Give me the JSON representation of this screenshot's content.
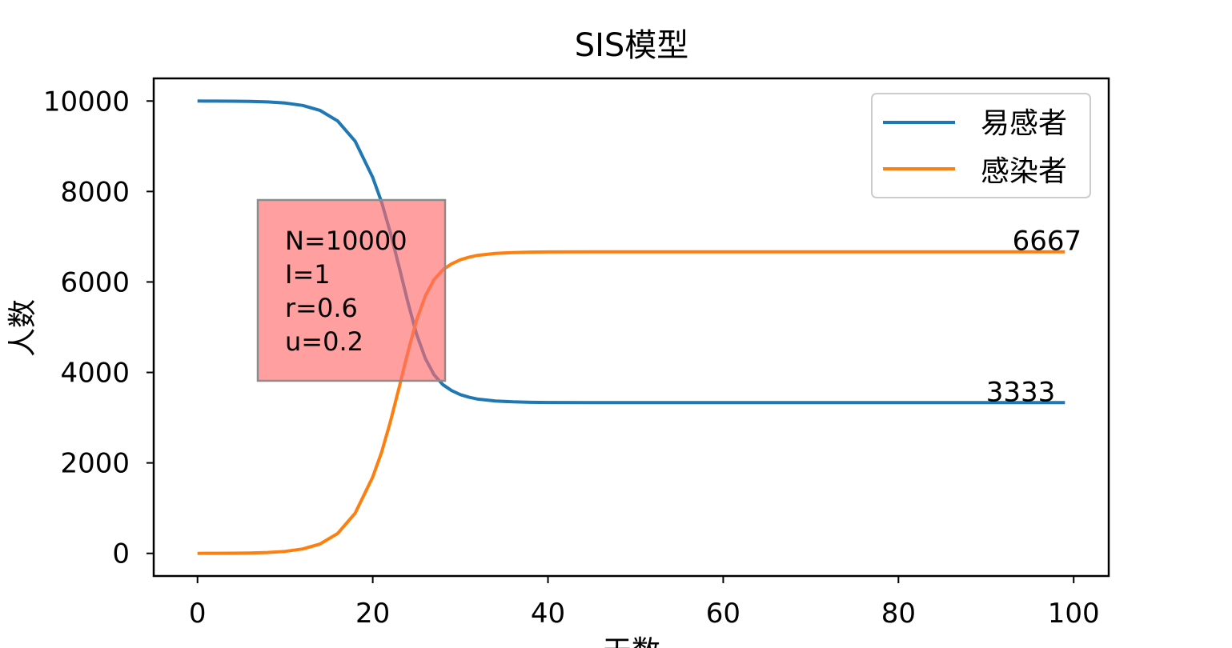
{
  "chart_data": {
    "type": "line",
    "title": "SIS模型",
    "xlabel": "天数",
    "ylabel": "人数",
    "xlim": [
      -5,
      104
    ],
    "ylim": [
      -500,
      10500
    ],
    "xticks": [
      0,
      20,
      40,
      60,
      80,
      100
    ],
    "yticks": [
      0,
      2000,
      4000,
      6000,
      8000,
      10000
    ],
    "grid": false,
    "legend_position": "upper right",
    "colors": {
      "susceptible": "#1f77b4",
      "infected": "#ff7f0e",
      "infobox": "#ff6b6b"
    },
    "series": [
      {
        "name": "易感者",
        "x": [
          0,
          2,
          4,
          6,
          8,
          10,
          12,
          14,
          16,
          18,
          20,
          21,
          22,
          23,
          24,
          25,
          26,
          27,
          28,
          29,
          30,
          31,
          32,
          34,
          36,
          38,
          40,
          45,
          50,
          60,
          70,
          80,
          90,
          99
        ],
        "values": [
          9999,
          9998,
          9996,
          9991,
          9980,
          9955,
          9902,
          9790,
          9560,
          9110,
          8310,
          7770,
          7100,
          6340,
          5560,
          4850,
          4310,
          3950,
          3730,
          3600,
          3510,
          3450,
          3410,
          3370,
          3350,
          3340,
          3336,
          3334,
          3333,
          3333,
          3333,
          3333,
          3333,
          3333
        ]
      },
      {
        "name": "感染者",
        "x": [
          0,
          2,
          4,
          6,
          8,
          10,
          12,
          14,
          16,
          18,
          20,
          21,
          22,
          23,
          24,
          25,
          26,
          27,
          28,
          29,
          30,
          31,
          32,
          34,
          36,
          38,
          40,
          45,
          50,
          60,
          70,
          80,
          90,
          99
        ],
        "values": [
          1,
          2,
          4,
          9,
          20,
          45,
          98,
          210,
          440,
          890,
          1690,
          2230,
          2900,
          3660,
          4440,
          5150,
          5690,
          6050,
          6270,
          6400,
          6490,
          6550,
          6590,
          6630,
          6650,
          6660,
          6664,
          6666,
          6667,
          6667,
          6667,
          6667,
          6667,
          6667
        ]
      }
    ],
    "annotations": [
      {
        "text": "6667",
        "x": 93,
        "y": 6667
      },
      {
        "text": "3333",
        "x": 90,
        "y": 3333
      }
    ],
    "infobox": {
      "lines": [
        "N=10000",
        "I=1",
        "r=0.6",
        "u=0.2"
      ]
    }
  }
}
